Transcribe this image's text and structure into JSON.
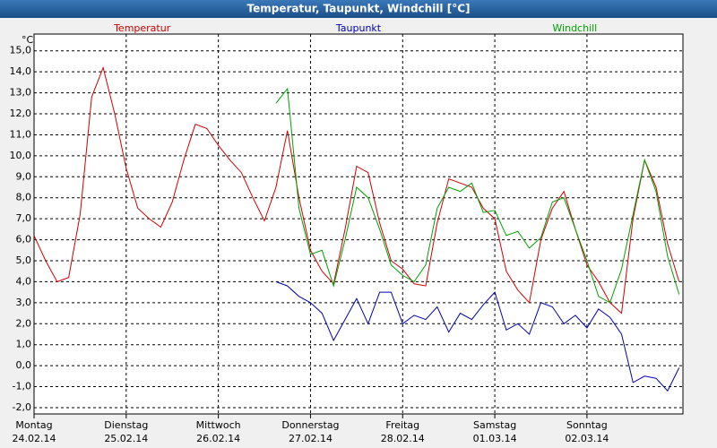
{
  "chart_data": {
    "type": "line",
    "title": "Temperatur, Taupunkt, Windchill [°C]",
    "y_unit": "°C",
    "x": [
      0,
      3,
      6,
      9,
      12,
      15,
      18,
      21,
      24,
      27,
      30,
      33,
      36,
      39,
      42,
      45,
      48,
      51,
      54,
      57,
      60,
      63,
      66,
      69,
      72,
      75,
      78,
      81,
      84,
      87,
      90,
      93,
      96,
      99,
      102,
      105,
      108,
      111,
      114,
      117,
      120,
      123,
      126,
      129,
      132,
      135,
      138,
      141,
      144,
      147,
      150,
      153,
      156,
      159,
      162,
      165,
      168
    ],
    "xlim": [
      0,
      169
    ],
    "xticks": [
      {
        "value": 0,
        "label": "Montag",
        "date": "24.02.14"
      },
      {
        "value": 24,
        "label": "Dienstag",
        "date": "25.02.14"
      },
      {
        "value": 48,
        "label": "Mittwoch",
        "date": "26.02.14"
      },
      {
        "value": 72,
        "label": "Donnerstag",
        "date": "27.02.14"
      },
      {
        "value": 96,
        "label": "Freitag",
        "date": "28.02.14"
      },
      {
        "value": 120,
        "label": "Samstag",
        "date": "01.03.14"
      },
      {
        "value": 144,
        "label": "Sonntag",
        "date": "02.03.14"
      }
    ],
    "ylim": [
      -2.3,
      15.8
    ],
    "yticks": [
      {
        "value": -2,
        "label": "-2,0"
      },
      {
        "value": -1,
        "label": "-1,0"
      },
      {
        "value": 0,
        "label": "0,0"
      },
      {
        "value": 1,
        "label": "1,0"
      },
      {
        "value": 2,
        "label": "2,0"
      },
      {
        "value": 3,
        "label": "3,0"
      },
      {
        "value": 4,
        "label": "4,0"
      },
      {
        "value": 5,
        "label": "5,0"
      },
      {
        "value": 6,
        "label": "6,0"
      },
      {
        "value": 7,
        "label": "7,0"
      },
      {
        "value": 8,
        "label": "8,0"
      },
      {
        "value": 9,
        "label": "9,0"
      },
      {
        "value": 10,
        "label": "10,0"
      },
      {
        "value": 11,
        "label": "11,0"
      },
      {
        "value": 12,
        "label": "12,0"
      },
      {
        "value": 13,
        "label": "13,0"
      },
      {
        "value": 14,
        "label": "14,0"
      },
      {
        "value": 15,
        "label": "15,0"
      }
    ],
    "grid": true,
    "series": [
      {
        "name": "Temperatur",
        "color": "#d00000",
        "values": [
          6.2,
          5.0,
          4.0,
          4.2,
          7.2,
          12.8,
          14.2,
          12.0,
          9.4,
          7.5,
          7.0,
          6.6,
          7.8,
          9.8,
          11.5,
          11.3,
          10.5,
          9.8,
          9.2,
          8.0,
          6.9,
          8.5,
          11.2,
          8.0,
          5.5,
          4.5,
          3.9,
          6.5,
          9.5,
          9.2,
          6.8,
          5.0,
          4.6,
          3.9,
          3.8,
          6.8,
          8.9,
          8.7,
          8.5,
          7.5,
          7.0,
          4.5,
          3.6,
          3.0,
          6.0,
          7.5,
          8.3,
          6.5,
          4.8,
          4.0,
          3.0,
          2.5,
          7.0,
          9.8,
          8.5,
          5.8,
          4.0
        ]
      },
      {
        "name": "Taupunkt",
        "color": "#0000b0",
        "values": [
          null,
          null,
          null,
          null,
          null,
          null,
          null,
          null,
          null,
          null,
          null,
          null,
          null,
          null,
          null,
          null,
          null,
          null,
          null,
          null,
          null,
          4.0,
          3.8,
          3.3,
          3.0,
          2.5,
          1.2,
          2.2,
          3.2,
          2.0,
          3.5,
          3.5,
          2.0,
          2.4,
          2.2,
          2.8,
          1.6,
          2.5,
          2.2,
          2.9,
          3.5,
          1.7,
          2.0,
          1.5,
          3.0,
          2.8,
          2.0,
          2.4,
          1.8,
          2.7,
          2.3,
          1.5,
          -0.8,
          -0.5,
          -0.6,
          -1.2,
          -0.1
        ]
      },
      {
        "name": "Windchill",
        "color": "#00a000",
        "values": [
          null,
          null,
          null,
          null,
          null,
          null,
          null,
          null,
          null,
          null,
          null,
          null,
          null,
          null,
          null,
          null,
          null,
          null,
          null,
          null,
          null,
          12.5,
          13.2,
          7.5,
          5.3,
          5.5,
          3.8,
          6.0,
          8.5,
          8.0,
          6.5,
          4.8,
          4.3,
          4.0,
          4.8,
          7.5,
          8.5,
          8.3,
          8.7,
          7.3,
          7.4,
          6.2,
          6.4,
          5.6,
          6.1,
          7.8,
          8.0,
          6.5,
          5.0,
          3.3,
          3.0,
          4.6,
          7.2,
          9.8,
          8.3,
          5.2,
          3.4
        ]
      }
    ]
  }
}
